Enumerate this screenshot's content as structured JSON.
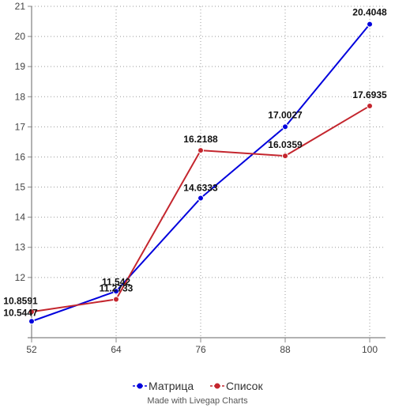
{
  "chart_data": {
    "type": "line",
    "x": [
      52,
      64,
      76,
      88,
      100
    ],
    "series": [
      {
        "name": "Матрица",
        "color": "#0000dd",
        "values": [
          10.5447,
          11.542,
          14.6333,
          17.0027,
          20.4048
        ]
      },
      {
        "name": "Список",
        "color": "#c4262e",
        "values": [
          10.8591,
          11.2733,
          16.2188,
          16.0359,
          17.6935
        ]
      }
    ],
    "x_ticks": [
      "52",
      "64",
      "76",
      "88",
      "100"
    ],
    "y_ticks": [
      "12",
      "13",
      "14",
      "15",
      "16",
      "17",
      "18",
      "19",
      "20",
      "21"
    ],
    "ylim": [
      10,
      21
    ],
    "grid": true,
    "legend_position": "bottom"
  },
  "credit": "Made with Livegap Charts"
}
